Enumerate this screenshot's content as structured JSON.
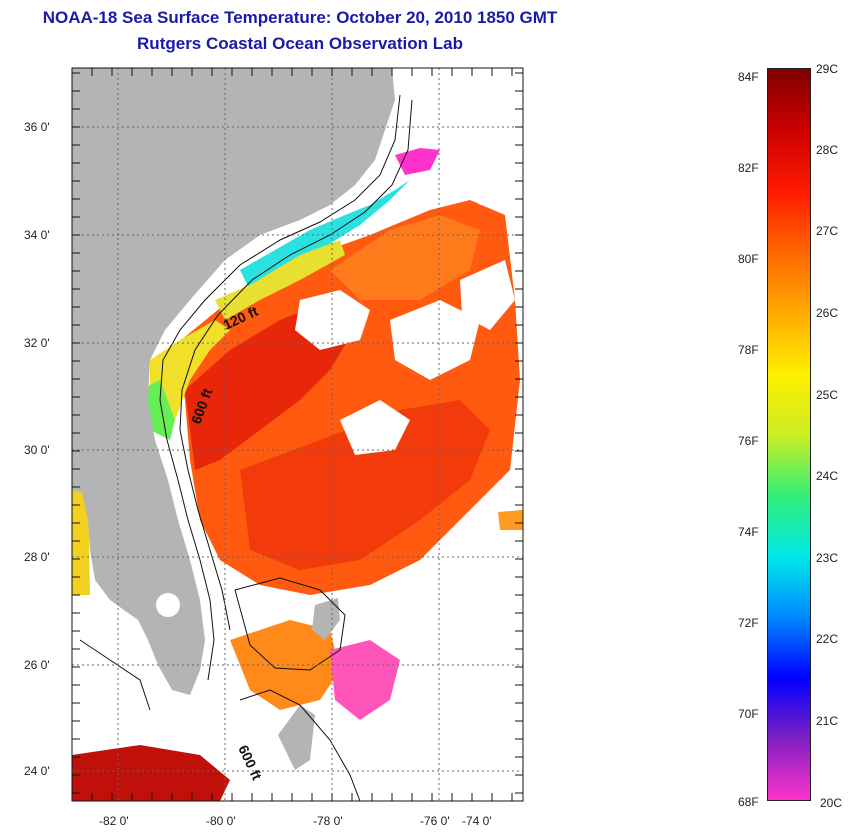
{
  "header": {
    "title": "NOAA-18 Sea Surface Temperature:  October 20, 2010 1850 GMT",
    "subtitle": "Rutgers Coastal Ocean Observation Lab"
  },
  "map": {
    "lat_labels": [
      "36 0'",
      "34 0'",
      "32 0'",
      "30 0'",
      "28 0'",
      "26 0'",
      "24 0'"
    ],
    "lon_labels": [
      "-82 0'",
      "-80 0'",
      "-78 0'",
      "-76 0'",
      "-74 0'"
    ],
    "contour_labels": [
      "120 ft",
      "600 ft",
      "600 ft"
    ]
  },
  "colorbar": {
    "fahrenheit": [
      "84F",
      "82F",
      "80F",
      "78F",
      "76F",
      "74F",
      "72F",
      "70F",
      "68F"
    ],
    "celsius": [
      "29C",
      "28C",
      "27C",
      "26C",
      "25C",
      "24C",
      "23C",
      "22C",
      "21C",
      "20C"
    ],
    "colors": [
      "#ff33cc",
      "#8020c0",
      "#0000ff",
      "#0088ff",
      "#00e8e8",
      "#33ee77",
      "#ccee22",
      "#ffee00",
      "#ffaa00",
      "#ff6600",
      "#ff1a00",
      "#cc0000",
      "#800000"
    ]
  }
}
